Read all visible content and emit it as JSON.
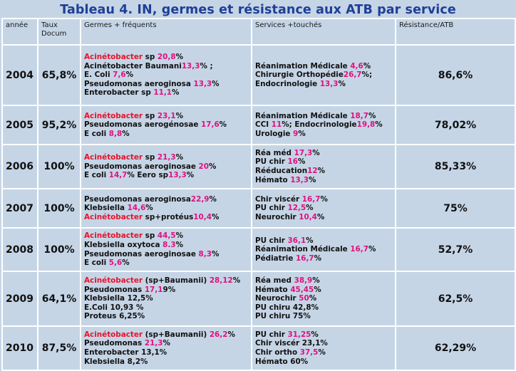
{
  "title": "Tableau 4. IN, germes et résistance aux ATB par service",
  "headers": {
    "annee": "année",
    "taux_l1": "Taux",
    "taux_l2": "Docum",
    "germes": "Germes + fréquents",
    "services": "Services +touchés",
    "resistance": "Résistance/ATB"
  },
  "colors": {
    "background": "#c5d5e6",
    "title": "#1f3f97",
    "germ_name_red": "#e8132a",
    "percent_magenta": "#e0117f",
    "grid_lines": "#ffffff"
  },
  "rows": [
    {
      "year": "2004",
      "taux": "65,8%",
      "resistance": "86,6%",
      "germes": [
        [
          [
            "Acinétobacter",
            "r"
          ],
          [
            " sp ",
            ""
          ],
          [
            "20,8",
            "m"
          ],
          [
            "%",
            ""
          ]
        ],
        [
          [
            "Acinétobacter Baumani",
            ""
          ],
          [
            "13,3",
            "m"
          ],
          [
            "% ;",
            ""
          ]
        ],
        [
          [
            "E. Coli ",
            ""
          ],
          [
            "7,6",
            "m"
          ],
          [
            "%",
            ""
          ]
        ],
        [
          [
            "Pseudomonas aeroginosa ",
            ""
          ],
          [
            "13,3",
            "m"
          ],
          [
            "%",
            ""
          ]
        ],
        [
          [
            "Enterobacter sp ",
            ""
          ],
          [
            "11,1",
            "m"
          ],
          [
            "%",
            ""
          ]
        ]
      ],
      "services": [
        [
          [
            "Réanimation Médicale ",
            ""
          ],
          [
            "4,6",
            "m"
          ],
          [
            "%",
            ""
          ]
        ],
        [
          [
            "Chirurgie Orthopédie",
            ""
          ],
          [
            "26,7",
            "m"
          ],
          [
            "%;",
            ""
          ]
        ],
        [
          [
            "Endocrinologie ",
            ""
          ],
          [
            "13,3",
            "m"
          ],
          [
            "%",
            ""
          ]
        ]
      ]
    },
    {
      "year": "2005",
      "taux": "95,2%",
      "resistance": "78,02%",
      "germes": [
        [
          [
            "Acinétobacter",
            "r"
          ],
          [
            " sp ",
            ""
          ],
          [
            "23,1",
            "m"
          ],
          [
            "%",
            ""
          ]
        ],
        [
          [
            "Pseudomonas aerogénosae ",
            ""
          ],
          [
            "17,6",
            "m"
          ],
          [
            "%",
            ""
          ]
        ],
        [
          [
            "E coli  ",
            ""
          ],
          [
            "8,8",
            "m"
          ],
          [
            "%",
            ""
          ]
        ]
      ],
      "services": [
        [
          [
            "Réanimation Médicale ",
            ""
          ],
          [
            "18,7",
            "m"
          ],
          [
            "%",
            ""
          ]
        ],
        [
          [
            "CCI ",
            ""
          ],
          [
            "11",
            "m"
          ],
          [
            "%; Endocrinologie",
            ""
          ],
          [
            "19,8",
            "m"
          ],
          [
            "%",
            ""
          ]
        ],
        [
          [
            "Urologie ",
            ""
          ],
          [
            "9",
            "m"
          ],
          [
            "%",
            ""
          ]
        ]
      ]
    },
    {
      "year": "2006",
      "taux": "100%",
      "resistance": "85,33%",
      "germes": [
        [
          [
            "Acinétobacter",
            "r"
          ],
          [
            " sp ",
            ""
          ],
          [
            "21,3",
            "m"
          ],
          [
            "%",
            ""
          ]
        ],
        [
          [
            "Pseudomonas aeroginosae ",
            ""
          ],
          [
            "20",
            "m"
          ],
          [
            "%",
            ""
          ]
        ],
        [
          [
            "E coli ",
            ""
          ],
          [
            "14,7",
            "m"
          ],
          [
            "% Eero sp",
            ""
          ],
          [
            "13,3",
            "m"
          ],
          [
            "%",
            ""
          ]
        ]
      ],
      "services": [
        [
          [
            "Réa méd ",
            ""
          ],
          [
            "17,3",
            "m"
          ],
          [
            "%",
            ""
          ]
        ],
        [
          [
            "PU chir ",
            ""
          ],
          [
            "16",
            "m"
          ],
          [
            "%",
            ""
          ]
        ],
        [
          [
            "Rééducation",
            ""
          ],
          [
            "12",
            "m"
          ],
          [
            "%",
            ""
          ]
        ],
        [
          [
            "Hémato ",
            ""
          ],
          [
            "13,3",
            "m"
          ],
          [
            "%",
            ""
          ]
        ]
      ]
    },
    {
      "year": "2007",
      "taux": "100%",
      "resistance": "75%",
      "germes": [
        [
          [
            "Pseudomonas aeroginosa",
            ""
          ],
          [
            "22,9",
            "m"
          ],
          [
            "%",
            ""
          ]
        ],
        [
          [
            "Klebsiella ",
            ""
          ],
          [
            "14,6",
            "m"
          ],
          [
            "%",
            ""
          ]
        ],
        [
          [
            "Acinétobacter",
            "r"
          ],
          [
            " sp+protéus",
            ""
          ],
          [
            "10,4",
            "m"
          ],
          [
            "%",
            ""
          ]
        ]
      ],
      "services": [
        [
          [
            "Chir viscér ",
            ""
          ],
          [
            "16,7",
            "m"
          ],
          [
            "%",
            ""
          ]
        ],
        [
          [
            "PU chir ",
            ""
          ],
          [
            "12,5",
            "m"
          ],
          [
            "%",
            ""
          ]
        ],
        [
          [
            "Neurochir ",
            ""
          ],
          [
            "10,4",
            "m"
          ],
          [
            "%",
            ""
          ]
        ]
      ]
    },
    {
      "year": "2008",
      "taux": "100%",
      "resistance": "52,7%",
      "germes": [
        [
          [
            "Acinétobacter",
            "r"
          ],
          [
            " sp ",
            ""
          ],
          [
            "44,5",
            "m"
          ],
          [
            "%",
            ""
          ]
        ],
        [
          [
            "Klebsiella oxytoca ",
            ""
          ],
          [
            "8.3",
            "m"
          ],
          [
            "%",
            ""
          ]
        ],
        [
          [
            "Pseudomonas aeroginosae ",
            ""
          ],
          [
            "8,3",
            "m"
          ],
          [
            "%",
            ""
          ]
        ],
        [
          [
            "E coli ",
            ""
          ],
          [
            "5,6",
            "m"
          ],
          [
            "%",
            ""
          ]
        ]
      ],
      "services": [
        [
          [
            "PU chir ",
            ""
          ],
          [
            "36,1",
            "m"
          ],
          [
            "%",
            ""
          ]
        ],
        [
          [
            "Réanimation Médicale ",
            ""
          ],
          [
            "16,7",
            "m"
          ],
          [
            "%",
            ""
          ]
        ],
        [
          [
            "Pédiatrie ",
            ""
          ],
          [
            "16,7",
            "m"
          ],
          [
            "%",
            ""
          ]
        ]
      ]
    },
    {
      "year": "2009",
      "taux": "64,1%",
      "resistance": "62,5%",
      "germes": [
        [
          [
            "Acinétobacter",
            "r"
          ],
          [
            " (sp+Baumanii) ",
            ""
          ],
          [
            "28,12",
            "m"
          ],
          [
            "%",
            ""
          ]
        ],
        [
          [
            "Pseudomonas  ",
            ""
          ],
          [
            "17,1",
            "m"
          ],
          [
            "9%",
            ""
          ]
        ],
        [
          [
            "Klebsiella 12,5%",
            ""
          ]
        ],
        [
          [
            "E.Coli 10,93 %",
            ""
          ]
        ],
        [
          [
            "Proteus 6,25%",
            ""
          ]
        ]
      ],
      "services": [
        [
          [
            "Réa med  ",
            ""
          ],
          [
            "38,9",
            "m"
          ],
          [
            "%",
            ""
          ]
        ],
        [
          [
            "Hémato  ",
            ""
          ],
          [
            "45,45",
            "m"
          ],
          [
            "%",
            ""
          ]
        ],
        [
          [
            "Neurochir ",
            ""
          ],
          [
            "50",
            "m"
          ],
          [
            "%",
            ""
          ]
        ],
        [
          [
            "PU chiru  42,8%",
            ""
          ]
        ],
        [
          [
            "PU chiru  75%",
            ""
          ]
        ]
      ]
    },
    {
      "year": "2010",
      "taux": "87,5%",
      "resistance": "62,29%",
      "germes": [
        [
          [
            "Acinétobacter",
            "r"
          ],
          [
            " (sp+Baumanii) ",
            ""
          ],
          [
            "26,2",
            "m"
          ],
          [
            "%",
            ""
          ]
        ],
        [
          [
            "Pseudomonas ",
            ""
          ],
          [
            "21,3",
            "m"
          ],
          [
            "%",
            ""
          ]
        ],
        [
          [
            "Enterobacter 13,1%",
            ""
          ]
        ],
        [
          [
            "Klebsiella 8,2%",
            ""
          ]
        ]
      ],
      "services": [
        [
          [
            "PU chir  ",
            ""
          ],
          [
            "31,25",
            "m"
          ],
          [
            "%",
            ""
          ]
        ],
        [
          [
            "Chir viscér  23,1%",
            ""
          ]
        ],
        [
          [
            "Chir ortho  ",
            ""
          ],
          [
            "37,5",
            "m"
          ],
          [
            "%",
            ""
          ]
        ],
        [
          [
            "Hémato  60%",
            ""
          ]
        ]
      ]
    }
  ]
}
